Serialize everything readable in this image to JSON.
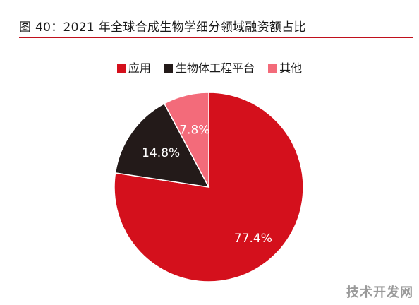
{
  "title": "图 40：2021 年全球合成生物学细分领域融资额占比",
  "watermark": "技术开发网",
  "chart_data": {
    "type": "pie",
    "title": "图 40：2021 年全球合成生物学细分领域融资额占比",
    "legend_position": "top-center",
    "start_angle": "12 o'clock, clockwise",
    "series": [
      {
        "name": "应用",
        "value": 77.4,
        "label": "77.4%",
        "color": "#d4101c"
      },
      {
        "name": "生物体工程平台",
        "value": 14.8,
        "label": "14.8%",
        "color": "#231a19"
      },
      {
        "name": "其他",
        "value": 7.8,
        "label": "7.8%",
        "color": "#f36b7a"
      }
    ]
  }
}
